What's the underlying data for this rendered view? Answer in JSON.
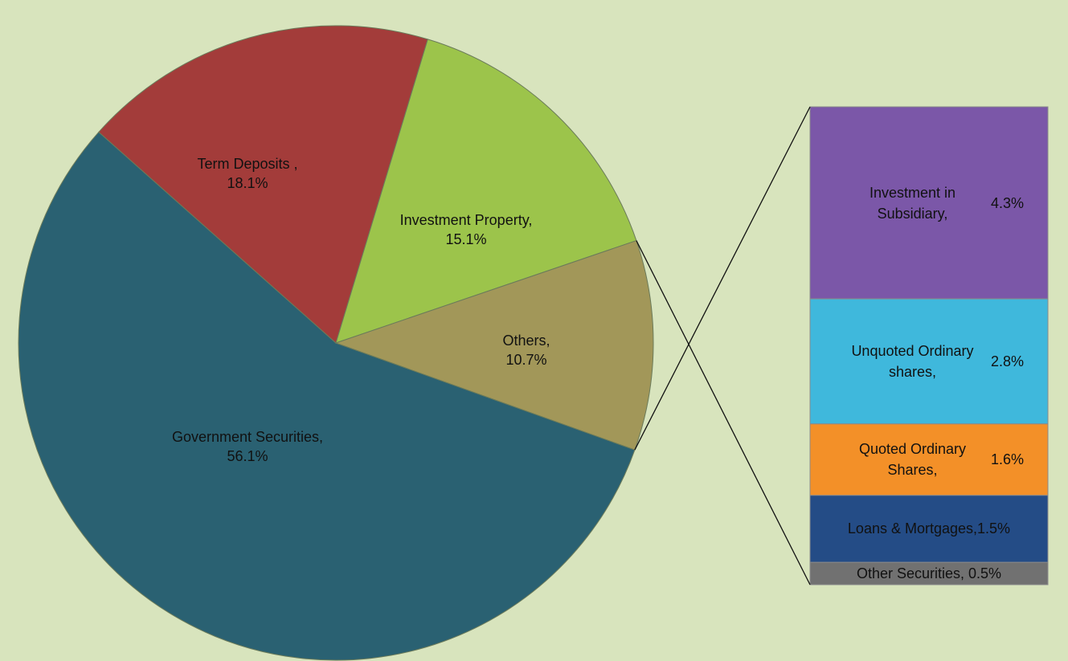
{
  "chart_data": {
    "type": "pie",
    "categories": [
      "Government Securities,",
      "Term Deposits ,",
      "Investment Property,",
      "Others,"
    ],
    "values": [
      56.1,
      18.1,
      15.1,
      10.7
    ],
    "value_labels": [
      "56.1%",
      "18.1%",
      "15.1%",
      "10.7%"
    ],
    "colors": [
      "#2a6172",
      "#a33c3a",
      "#9cc44b",
      "#a29759"
    ],
    "bar": {
      "categories": [
        "Investment in Subsidiary,",
        "Unquoted Ordinary shares,",
        "Quoted Ordinary Shares,",
        "Loans & Mortgages,",
        "Other Securities,"
      ],
      "values": [
        4.3,
        2.8,
        1.6,
        1.5,
        0.5
      ],
      "value_labels": [
        "4.3%",
        "2.8%",
        "1.6%",
        "1.5%",
        "0.5%"
      ],
      "colors": [
        "#7b57a8",
        "#3fb8dc",
        "#f39028",
        "#244c86",
        "#717171"
      ]
    }
  }
}
